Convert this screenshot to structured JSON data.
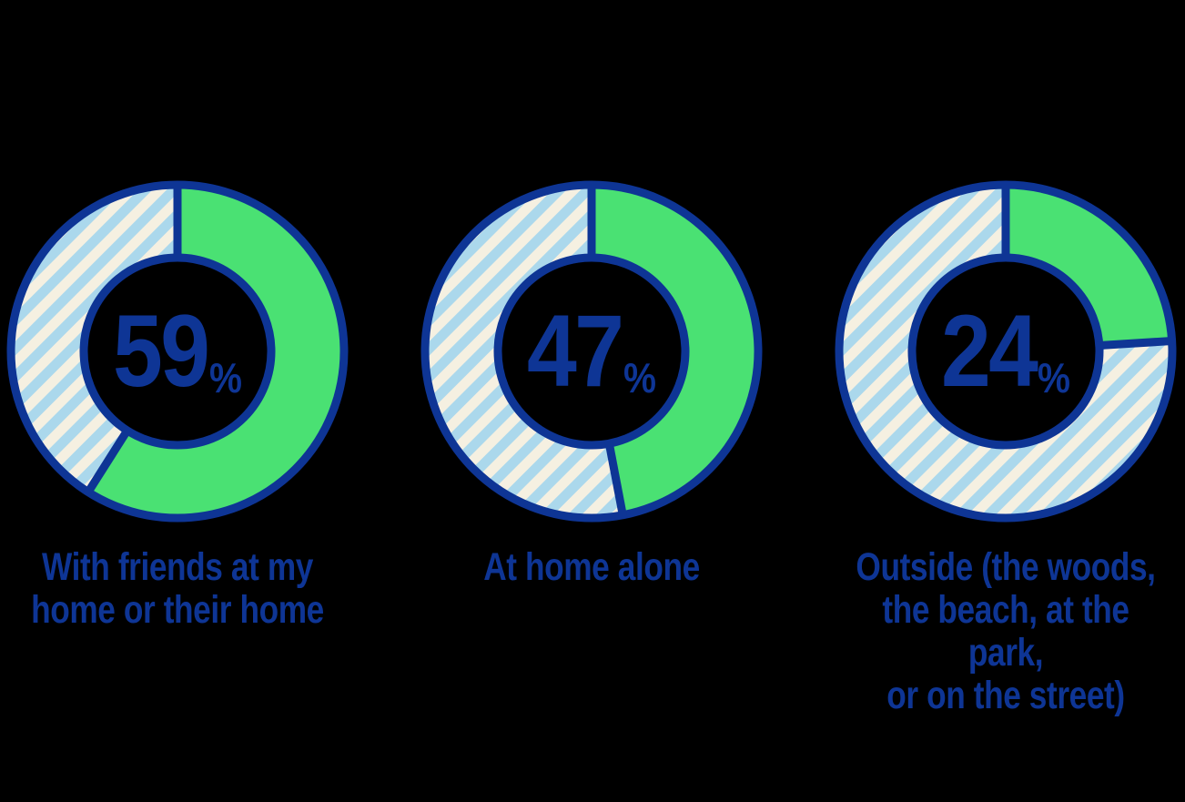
{
  "page": {
    "background": "#000000"
  },
  "chart_data": {
    "type": "pie",
    "variant": "donut",
    "start_angle_deg": 0,
    "direction": "clockwise",
    "legend": "none",
    "colors": {
      "filled": "#4ae173",
      "stripe_blue": "#abd8ec",
      "stripe_cream": "#f5f0e1",
      "outline_navy": "#0e3595",
      "background": "#000000"
    },
    "charts": [
      {
        "value": 59,
        "suffix": "%",
        "display": "59%",
        "label": "With friends at my home or their home",
        "label_lines": [
          "With friends at my",
          "home or their home"
        ]
      },
      {
        "value": 47,
        "suffix": "%",
        "display": "47%",
        "label": "At home alone",
        "label_lines": [
          "At home alone"
        ]
      },
      {
        "value": 24,
        "suffix": "%",
        "display": "24%",
        "label": "Outside (the woods, the beach, at the park, or on the street)",
        "label_lines": [
          "Outside (the woods,",
          "the beach, at the park,",
          "or on the street)"
        ]
      }
    ]
  }
}
